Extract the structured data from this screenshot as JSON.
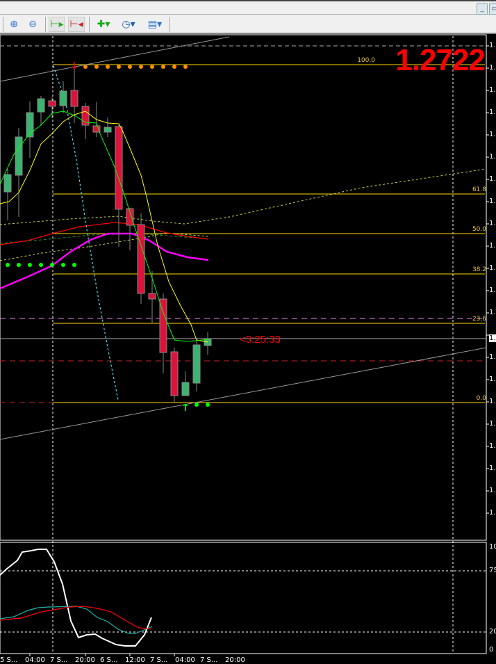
{
  "window": {
    "minimize_icon": "minimize-icon",
    "restore_icon": "restore-icon"
  },
  "toolbar": {
    "buttons": [
      "zoom-in",
      "zoom-out",
      "chart-shift",
      "auto-scroll",
      "indicators",
      "periods",
      "templates"
    ]
  },
  "chart": {
    "current_price": "1.2722",
    "bar_timer": "<3:25:33",
    "price_axis_label": "1.",
    "current_price_tag": "1.",
    "fib_levels": [
      "100.0",
      "61.8",
      "50.0",
      "38.2",
      "23.6",
      "0.0"
    ],
    "colors": {
      "bull": "#3cb371",
      "bear": "#dc143c",
      "fib": "#ffd700",
      "price": "#ff0000"
    }
  },
  "oscillator": {
    "levels": [
      "100",
      "75",
      "20",
      "0"
    ],
    "axis_top": "1."
  },
  "time_axis": [
    "5 S...",
    "04:00",
    "7 S...",
    "20:00",
    "6 S...",
    "12:00",
    "7 S...",
    "04:00",
    "7 S...",
    "20:00"
  ]
}
